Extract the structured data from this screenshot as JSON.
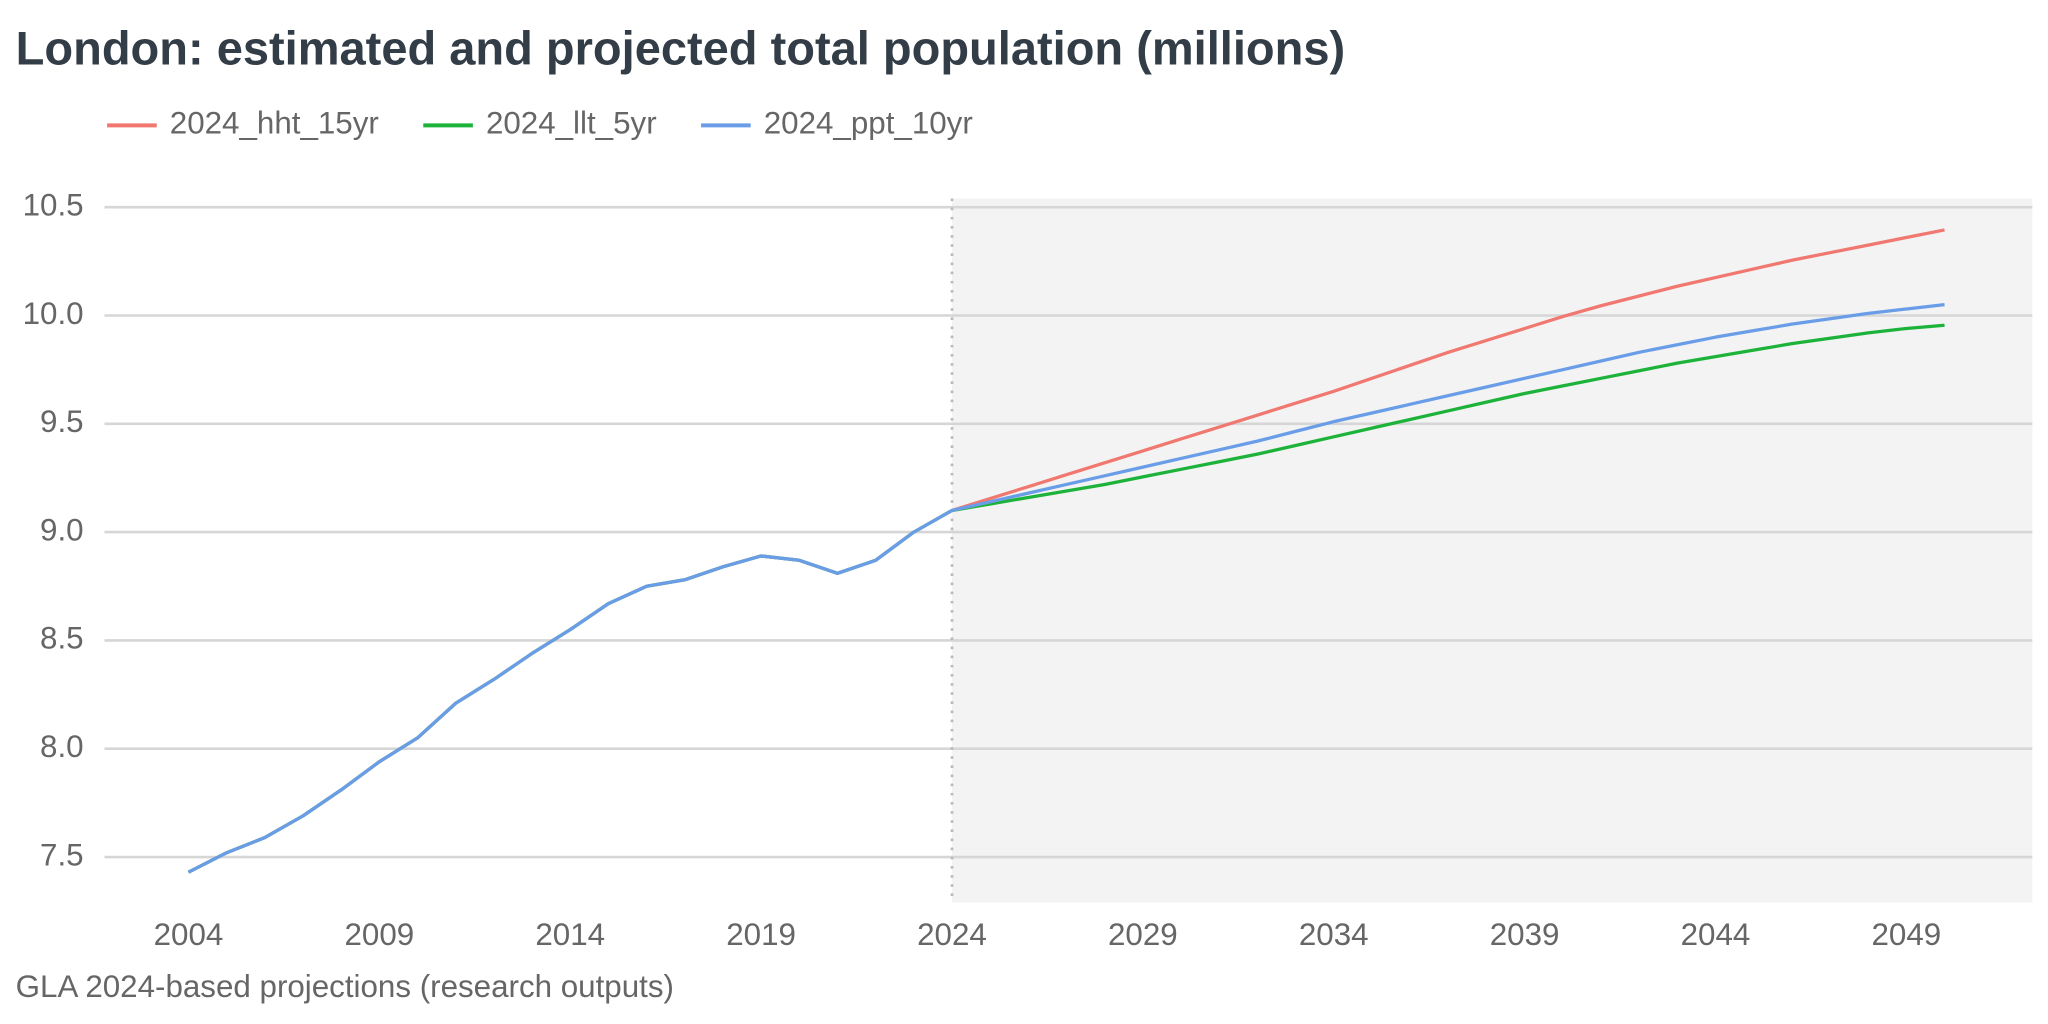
{
  "chart_data": {
    "type": "line",
    "title": "London: estimated and projected total population (millions)",
    "caption": "GLA 2024-based projections (research outputs)",
    "x": [
      2004,
      2005,
      2006,
      2007,
      2008,
      2009,
      2010,
      2011,
      2012,
      2013,
      2014,
      2015,
      2016,
      2017,
      2018,
      2019,
      2020,
      2021,
      2022,
      2023,
      2024,
      2025,
      2026,
      2027,
      2028,
      2029,
      2030,
      2031,
      2032,
      2033,
      2034,
      2035,
      2036,
      2037,
      2038,
      2039,
      2040,
      2041,
      2042,
      2043,
      2044,
      2045,
      2046,
      2047,
      2048,
      2049,
      2050
    ],
    "series": [
      {
        "name": "2024_hht_15yr",
        "color": "#f07870",
        "values": [
          7.43,
          7.52,
          7.59,
          7.69,
          7.81,
          7.94,
          8.05,
          8.21,
          8.32,
          8.44,
          8.55,
          8.67,
          8.75,
          8.78,
          8.84,
          8.89,
          8.87,
          8.81,
          8.87,
          9.0,
          9.1,
          9.155,
          9.21,
          9.265,
          9.32,
          9.375,
          9.43,
          9.485,
          9.54,
          9.595,
          9.65,
          9.71,
          9.77,
          9.83,
          9.885,
          9.94,
          9.995,
          10.045,
          10.09,
          10.135,
          10.175,
          10.215,
          10.255,
          10.29,
          10.325,
          10.36,
          10.395
        ]
      },
      {
        "name": "2024_llt_5yr",
        "color": "#1db33b",
        "values": [
          7.43,
          7.52,
          7.59,
          7.69,
          7.81,
          7.94,
          8.05,
          8.21,
          8.32,
          8.44,
          8.55,
          8.67,
          8.75,
          8.78,
          8.84,
          8.89,
          8.87,
          8.81,
          8.87,
          9.0,
          9.1,
          9.13,
          9.16,
          9.19,
          9.22,
          9.255,
          9.29,
          9.325,
          9.36,
          9.4,
          9.44,
          9.48,
          9.52,
          9.56,
          9.6,
          9.64,
          9.675,
          9.71,
          9.745,
          9.78,
          9.81,
          9.84,
          9.87,
          9.895,
          9.92,
          9.94,
          9.955
        ]
      },
      {
        "name": "2024_ppt_10yr",
        "color": "#6a9de8",
        "values": [
          7.43,
          7.52,
          7.59,
          7.69,
          7.81,
          7.94,
          8.05,
          8.21,
          8.32,
          8.44,
          8.55,
          8.67,
          8.75,
          8.78,
          8.84,
          8.89,
          8.87,
          8.81,
          8.87,
          9.0,
          9.1,
          9.14,
          9.18,
          9.22,
          9.26,
          9.3,
          9.34,
          9.38,
          9.42,
          9.465,
          9.51,
          9.55,
          9.59,
          9.63,
          9.67,
          9.71,
          9.75,
          9.79,
          9.83,
          9.865,
          9.9,
          9.93,
          9.96,
          9.985,
          10.01,
          10.03,
          10.05
        ]
      }
    ],
    "projection_start": 2024,
    "xlim": [
      2001.8,
      2052.3
    ],
    "xticks": [
      2004,
      2009,
      2014,
      2019,
      2024,
      2029,
      2034,
      2039,
      2044,
      2049
    ],
    "ylim": [
      7.29,
      10.54
    ],
    "yticks": [
      7.5,
      {
        "value": 8,
        "label": "8.0"
      },
      8.5,
      {
        "value": 9,
        "label": "9.0"
      },
      9.5,
      {
        "value": 10,
        "label": "10.0"
      },
      10.5
    ],
    "grid": true,
    "legend": "top"
  }
}
